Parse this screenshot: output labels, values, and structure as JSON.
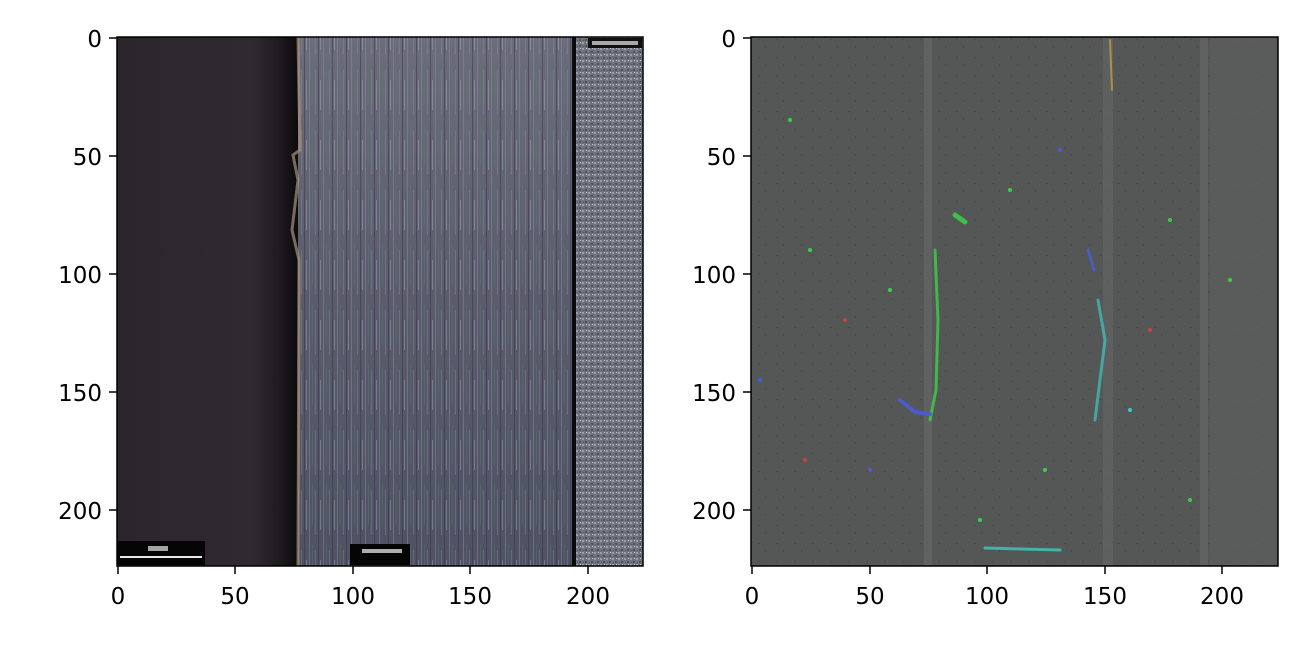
{
  "figure": {
    "panels": [
      {
        "id": "left",
        "content": "microscope image of a metal surface cut; dark smooth region on left, striated noisy region in middle, grainy bright region on right",
        "x_ticks": [
          "0",
          "50",
          "100",
          "150",
          "200"
        ],
        "y_ticks": [
          "0",
          "50",
          "100",
          "150",
          "200"
        ],
        "x_range": [
          0,
          224
        ],
        "y_range": [
          0,
          224
        ]
      },
      {
        "id": "right",
        "content": "gray filtered/difference image with sparse colored speckles (green, blue, red) along vertical streaks",
        "x_ticks": [
          "0",
          "50",
          "100",
          "150",
          "200"
        ],
        "y_ticks": [
          "0",
          "50",
          "100",
          "150",
          "200"
        ],
        "x_range": [
          0,
          224
        ],
        "y_range": [
          0,
          224
        ]
      }
    ],
    "colors": {
      "left_dark_region": "#2a2429",
      "left_texture_region": "#5d5f6e",
      "left_right_region": "#7c7f89",
      "right_background": "#5a5a5a",
      "speckle_green": "#3cd04a",
      "speckle_blue": "#4a5cd8",
      "speckle_red": "#c8443c",
      "speckle_cyan": "#40c8c0"
    }
  }
}
